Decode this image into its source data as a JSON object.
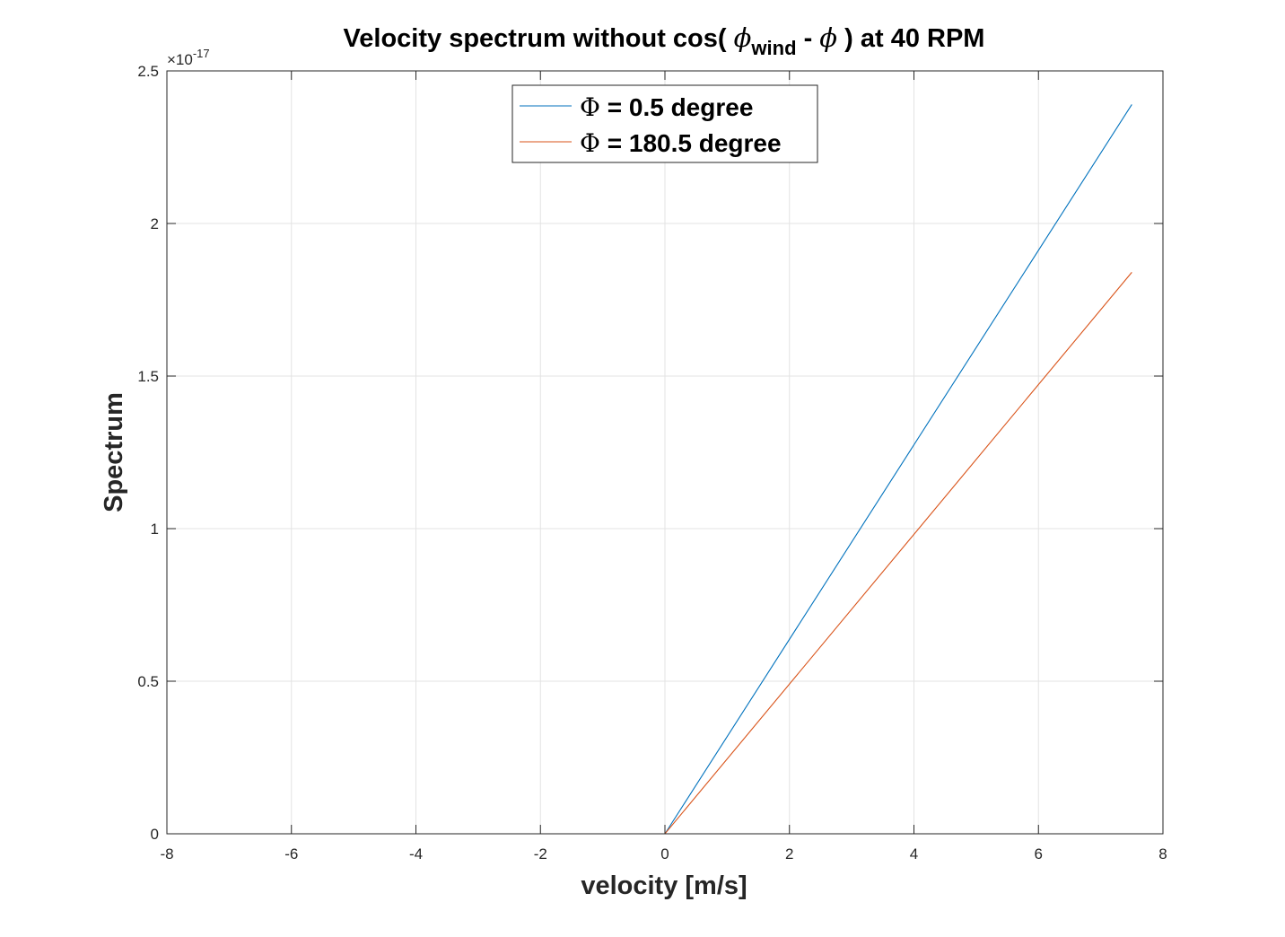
{
  "chart_data": {
    "type": "line",
    "title": {
      "prefix": "Velocity spectrum without cos( ",
      "phi1": "ϕ",
      "subscript": "wind",
      "middle": " - ",
      "phi2": "ϕ",
      "suffix": " ) at 40 RPM"
    },
    "xlabel": "velocity [m/s]",
    "ylabel": "Spectrum",
    "xlim": [
      -8,
      8
    ],
    "ylim": [
      0,
      2.5
    ],
    "y_exponent": {
      "base": "×10",
      "power": "-17"
    },
    "x_ticks": [
      -8,
      -6,
      -4,
      -2,
      0,
      2,
      4,
      6,
      8
    ],
    "x_tick_labels": [
      "-8",
      "-6",
      "-4",
      "-2",
      "0",
      "2",
      "4",
      "6",
      "8"
    ],
    "y_ticks": [
      0,
      0.5,
      1,
      1.5,
      2,
      2.5
    ],
    "y_tick_labels": [
      "0",
      "0.5",
      "1",
      "1.5",
      "2",
      "2.5"
    ],
    "grid": true,
    "legend_position": "top-center",
    "series": [
      {
        "name_symbol": "Φ",
        "name_text": " = 0.5 degree",
        "color": "#0072BD",
        "x": [
          -7.5,
          0,
          7.5
        ],
        "y": [
          0,
          0,
          2.39
        ]
      },
      {
        "name_symbol": "Φ",
        "name_text": " = 180.5 degree",
        "color": "#D95319",
        "x": [
          -7.5,
          0,
          7.5
        ],
        "y": [
          0,
          0,
          1.84
        ]
      }
    ]
  }
}
